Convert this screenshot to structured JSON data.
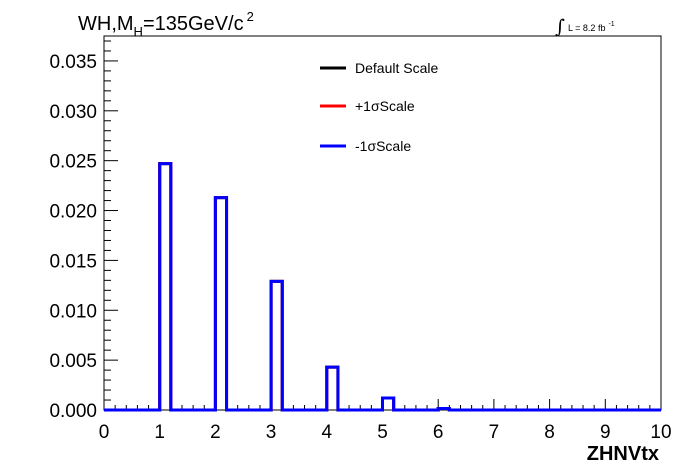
{
  "chart_data": {
    "type": "histogram",
    "title": {
      "prefix": "WH,M",
      "subscript": "H",
      "suffix": "=135GeV/c",
      "superscript": "2"
    },
    "luminosity": {
      "integral": "∫",
      "text": "L = 8.2 fb",
      "superscript": "-1"
    },
    "xlabel": "ZHNVtx",
    "ylabel": "",
    "xlim": [
      0,
      10
    ],
    "ylim": [
      0,
      0.0375
    ],
    "x_ticks": [
      "0",
      "1",
      "2",
      "3",
      "4",
      "5",
      "6",
      "7",
      "8",
      "9",
      "10"
    ],
    "y_ticks": [
      "0.000",
      "0.005",
      "0.010",
      "0.015",
      "0.020",
      "0.025",
      "0.030",
      "0.035"
    ],
    "bin_edges": [
      0,
      0.2,
      0.4,
      0.6,
      0.8,
      1.0,
      1.2,
      1.4,
      1.6,
      1.8,
      2.0,
      2.2,
      2.4,
      2.6,
      2.8,
      3.0,
      3.2,
      3.4,
      3.6,
      3.8,
      4.0,
      4.2,
      4.4,
      4.6,
      4.8,
      5.0,
      5.2,
      5.4,
      5.6,
      5.8,
      6.0,
      6.2,
      6.4,
      6.6,
      6.8,
      7.0,
      7.2,
      7.4,
      7.6,
      7.8,
      8.0,
      8.2,
      8.4,
      8.6,
      8.8,
      9.0,
      9.2,
      9.4,
      9.6,
      9.8,
      10.0
    ],
    "series": [
      {
        "name": "Default Scale",
        "color": "#000000",
        "values": [
          0,
          0,
          0,
          0,
          0,
          0.0247,
          0,
          0,
          0,
          0,
          0.0213,
          0,
          0,
          0,
          0,
          0.0129,
          0,
          0,
          0,
          0,
          0.0043,
          0,
          0,
          0,
          0,
          0.0012,
          0,
          0,
          0,
          0,
          0.00015,
          0,
          0,
          0,
          0,
          0,
          0,
          0,
          0,
          0,
          0,
          0,
          0,
          0,
          0,
          0,
          0,
          0,
          0,
          0
        ]
      },
      {
        "name": "+1σScale",
        "color": "#ff0000",
        "values": [
          0,
          0,
          0,
          0,
          0,
          0.0247,
          0,
          0,
          0,
          0,
          0.0213,
          0,
          0,
          0,
          0,
          0.0129,
          0,
          0,
          0,
          0,
          0.0043,
          0,
          0,
          0,
          0,
          0.0012,
          0,
          0,
          0,
          0,
          0.00015,
          0,
          0,
          0,
          0,
          0,
          0,
          0,
          0,
          0,
          0,
          0,
          0,
          0,
          0,
          0,
          0,
          0,
          0,
          0
        ]
      },
      {
        "name": "-1σScale",
        "color": "#0000ff",
        "values": [
          0,
          0,
          0,
          0,
          0,
          0.0247,
          0,
          0,
          0,
          0,
          0.0213,
          0,
          0,
          0,
          0,
          0.0129,
          0,
          0,
          0,
          0,
          0.0043,
          0,
          0,
          0,
          0,
          0.0012,
          0,
          0,
          0,
          0,
          0.00015,
          0,
          0,
          0,
          0,
          0,
          0,
          0,
          0,
          0,
          0,
          0,
          0,
          0,
          0,
          0,
          0,
          0,
          0,
          0
        ]
      }
    ],
    "legend": [
      "Default Scale",
      "+1σScale",
      "-1σScale"
    ],
    "legend_placement": "top-center",
    "grid": false
  }
}
